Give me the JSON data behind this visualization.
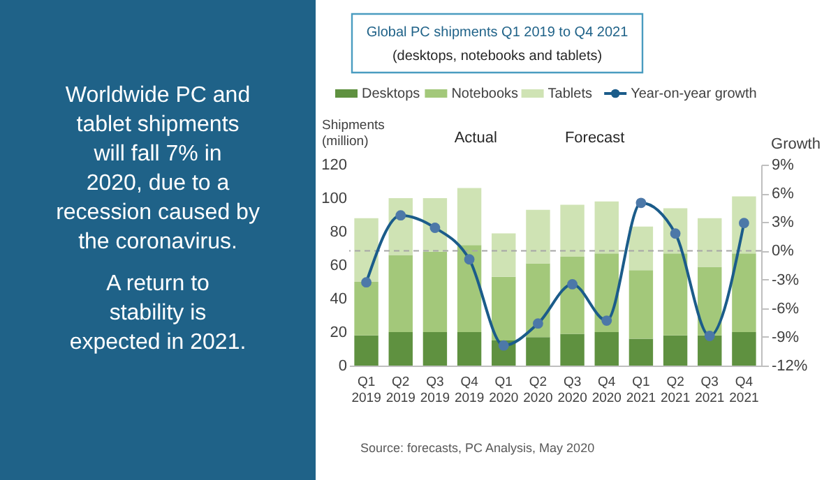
{
  "chart_data": {
    "type": "bar",
    "stacked": true,
    "title": "Global PC shipments Q1 2019 to Q4 2021",
    "subtitle": "(desktops, notebooks and tablets)",
    "ylabel": "Shipments (million)",
    "y2label": "Growth",
    "categories": [
      "Q1 2019",
      "Q2 2019",
      "Q3 2019",
      "Q4 2019",
      "Q1 2020",
      "Q2 2020",
      "Q3 2020",
      "Q4 2020",
      "Q1 2021",
      "Q2 2021",
      "Q3 2021",
      "Q4 2021"
    ],
    "series": [
      {
        "name": "Desktops",
        "color": "#5f9140",
        "values": [
          18,
          20,
          20,
          20,
          15,
          17,
          19,
          20,
          16,
          18,
          18,
          20
        ]
      },
      {
        "name": "Notebooks",
        "color": "#a3c87a",
        "values": [
          32,
          46,
          48,
          52,
          38,
          44,
          46,
          47,
          41,
          49,
          41,
          47
        ]
      },
      {
        "name": "Tablets",
        "color": "#cfe3b4",
        "values": [
          38,
          34,
          32,
          34,
          26,
          32,
          31,
          31,
          26,
          27,
          29,
          34
        ]
      },
      {
        "name": "Year-on-year growth",
        "type": "line",
        "axis": "y2",
        "color": "#1b5c8a",
        "values": [
          -3.3,
          3.7,
          2.4,
          -0.9,
          -9.9,
          -7.6,
          -3.5,
          -7.3,
          5.0,
          1.8,
          -8.9,
          2.9
        ]
      }
    ],
    "ylim": [
      0,
      120
    ],
    "yticks": [
      0,
      20,
      40,
      60,
      80,
      100,
      120
    ],
    "y2lim": [
      -12,
      9
    ],
    "y2ticks": [
      {
        "value": -12,
        "label": "-12%"
      },
      {
        "value": -9,
        "label": "-9%"
      },
      {
        "value": -6,
        "label": "-6%"
      },
      {
        "value": -3,
        "label": "-3%"
      },
      {
        "value": 0,
        "label": "0%"
      },
      {
        "value": 3,
        "label": "3%"
      },
      {
        "value": 6,
        "label": "6%"
      },
      {
        "value": 9,
        "label": "9%"
      }
    ],
    "ref_lines": [
      {
        "axis": "y2",
        "value": 0,
        "color": "#a6a6a6",
        "line_style": "dashed"
      }
    ],
    "marker": "circle",
    "grid": false,
    "legend": "top",
    "annotations": [
      "Actual",
      "Forecast",
      "Source: forecasts, PC Analysis, May 2020",
      "Worldwide PC and tablet shipments will fall 7% in 2020, due to a recession caused by the coronavirus.",
      "A return to stability is expected in 2021."
    ]
  }
}
